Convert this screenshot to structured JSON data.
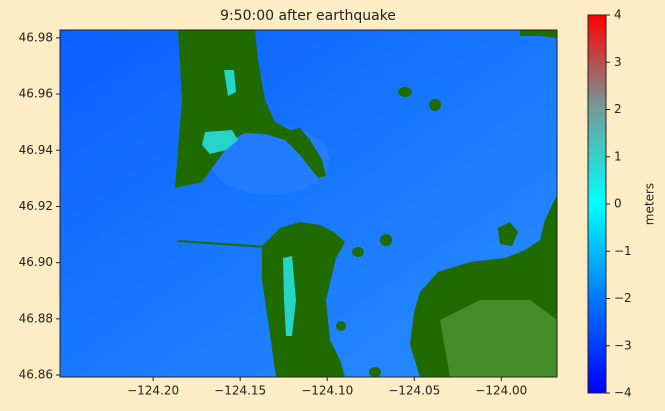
{
  "chart_data": {
    "type": "heatmap",
    "title": "9:50:00 after earthquake",
    "xlim": [
      -124.2535,
      -123.968
    ],
    "ylim": [
      46.8593,
      46.9828
    ],
    "xticks": [
      {
        "value": -124.2,
        "label": "−124.20"
      },
      {
        "value": -124.15,
        "label": "−124.15"
      },
      {
        "value": -124.1,
        "label": "−124.10"
      },
      {
        "value": -124.05,
        "label": "−124.05"
      },
      {
        "value": -124.0,
        "label": "−124.00"
      }
    ],
    "yticks": [
      46.86,
      46.88,
      {
        "value": 46.9,
        "label": "46.90"
      },
      46.92,
      46.94,
      46.96,
      46.98
    ],
    "colorbar": {
      "label": "meters",
      "zlim": [
        -4,
        4
      ],
      "ticks": [
        {
          "value": -4,
          "label": "−4"
        },
        {
          "value": -3,
          "label": "−3"
        },
        {
          "value": -2,
          "label": "−2"
        },
        {
          "value": -1,
          "label": "−1"
        },
        0,
        1,
        2,
        3,
        4
      ],
      "colormap": [
        "#0000ff",
        "#0078ff",
        "#00ffff",
        "#6f9f9a",
        "#ff0000"
      ]
    }
  }
}
